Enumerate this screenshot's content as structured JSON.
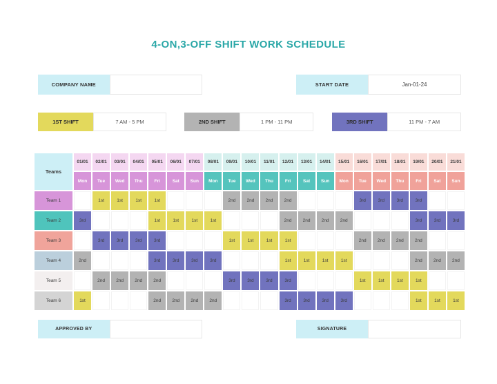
{
  "title": "4-ON,3-OFF SHIFT WORK SCHEDULE",
  "colors": {
    "accent_teal": "#2AA7A7",
    "label_cyan": "#CDEFF6",
    "shift_1st": "#E3D95C",
    "shift_2nd": "#B3B3B3",
    "shift_3rd": "#7173BE",
    "week1_date_bg": "#F4D7F1",
    "week1_day_bg": "#D795D9",
    "week2_date_bg": "#D6F0EE",
    "week2_day_bg": "#55C4BD",
    "week3_date_bg": "#F9DCD8",
    "week3_day_bg": "#F0A29A"
  },
  "fields": {
    "company_name": {
      "label": "COMPANY NAME",
      "value": ""
    },
    "start_date": {
      "label": "START DATE",
      "value": "Jan-01-24"
    },
    "approved_by": {
      "label": "APPROVED BY",
      "value": ""
    },
    "signature": {
      "label": "SIGNATURE",
      "value": ""
    }
  },
  "legend": [
    {
      "label": "1ST SHIFT",
      "time": "7 AM - 5 PM",
      "color": "#E3D95C"
    },
    {
      "label": "2ND SHIFT",
      "time": "1 PM - 11 PM",
      "color": "#B3B3B3"
    },
    {
      "label": "3RD SHIFT",
      "time": "11 PM - 7 AM",
      "color": "#7173BE"
    }
  ],
  "table": {
    "corner_label": "Teams",
    "weeks": [
      {
        "theme": "pink",
        "dates": [
          "01/01",
          "02/01",
          "03/01",
          "04/01",
          "05/01",
          "06/01",
          "07/01"
        ],
        "days": [
          "Mon",
          "Tue",
          "Wed",
          "Thu",
          "Fri",
          "Sat",
          "Sun"
        ]
      },
      {
        "theme": "teal",
        "dates": [
          "08/01",
          "09/01",
          "10/01",
          "11/01",
          "12/01",
          "13/01",
          "14/01"
        ],
        "days": [
          "Mon",
          "Tue",
          "Wed",
          "Thu",
          "Fri",
          "Sat",
          "Sun"
        ]
      },
      {
        "theme": "salmon",
        "dates": [
          "15/01",
          "16/01",
          "17/01",
          "18/01",
          "19/01",
          "20/01",
          "21/01"
        ],
        "days": [
          "Mon",
          "Tue",
          "Wed",
          "Thu",
          "Fri",
          "Sat",
          "Sun"
        ]
      }
    ],
    "teams": [
      {
        "name": "Team 1",
        "color": "#D795D9",
        "cells": [
          "",
          "1st",
          "1st",
          "1st",
          "1st",
          "",
          "",
          "",
          "2nd",
          "2nd",
          "2nd",
          "2nd",
          "",
          "",
          "",
          "3rd",
          "3rd",
          "3rd",
          "3rd",
          "",
          ""
        ]
      },
      {
        "name": "Team 2",
        "color": "#4FC4BC",
        "cells": [
          "3rd",
          "",
          "",
          "",
          "1st",
          "1st",
          "1st",
          "1st",
          "",
          "",
          "",
          "2nd",
          "2nd",
          "2nd",
          "2nd",
          "",
          "",
          "",
          "3rd",
          "3rd",
          "3rd"
        ]
      },
      {
        "name": "Team 3",
        "color": "#F0A49B",
        "cells": [
          "",
          "3rd",
          "3rd",
          "3rd",
          "3rd",
          "",
          "",
          "",
          "1st",
          "1st",
          "1st",
          "1st",
          "",
          "",
          "",
          "2nd",
          "2nd",
          "2nd",
          "2nd",
          "",
          ""
        ]
      },
      {
        "name": "Team 4",
        "color": "#BBCFDC",
        "cells": [
          "2nd",
          "",
          "",
          "",
          "3rd",
          "3rd",
          "3rd",
          "3rd",
          "",
          "",
          "",
          "1st",
          "1st",
          "1st",
          "1st",
          "",
          "",
          "",
          "2nd",
          "2nd",
          "2nd"
        ]
      },
      {
        "name": "Team 5",
        "color": "#F3EFEF",
        "cells": [
          "",
          "2nd",
          "2nd",
          "2nd",
          "2nd",
          "",
          "",
          "",
          "3rd",
          "3rd",
          "3rd",
          "3rd",
          "",
          "",
          "",
          "1st",
          "1st",
          "1st",
          "1st",
          "",
          ""
        ]
      },
      {
        "name": "Team 6",
        "color": "#D4D4D4",
        "cells": [
          "1st",
          "",
          "",
          "",
          "2nd",
          "2nd",
          "2nd",
          "2nd",
          "",
          "",
          "",
          "3rd",
          "3rd",
          "3rd",
          "3rd",
          "",
          "",
          "",
          "1st",
          "1st",
          "1st"
        ]
      }
    ]
  }
}
